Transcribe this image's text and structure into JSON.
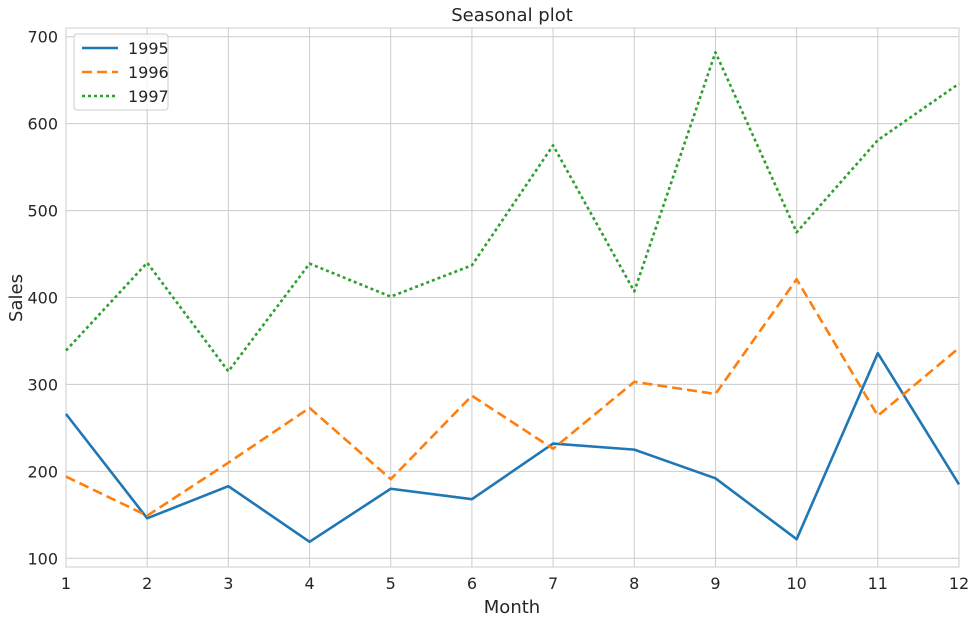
{
  "chart_data": {
    "type": "line",
    "title": "Seasonal plot",
    "xlabel": "Month",
    "ylabel": "Sales",
    "x": [
      1,
      2,
      3,
      4,
      5,
      6,
      7,
      8,
      9,
      10,
      11,
      12
    ],
    "xlim": [
      1,
      12
    ],
    "ylim": [
      90,
      710
    ],
    "yticks": [
      100,
      200,
      300,
      400,
      500,
      600,
      700
    ],
    "xticks": [
      1,
      2,
      3,
      4,
      5,
      6,
      7,
      8,
      9,
      10,
      11,
      12
    ],
    "grid": true,
    "legend_position": "top-left",
    "series": [
      {
        "name": "1995",
        "color": "#1f77b4",
        "style": "solid",
        "values": [
          266,
          146,
          183,
          119,
          180,
          168,
          232,
          225,
          192,
          122,
          336,
          185
        ]
      },
      {
        "name": "1996",
        "color": "#ff7f0e",
        "style": "dashed",
        "values": [
          194,
          149,
          210,
          273,
          191,
          287,
          226,
          303,
          289,
          421,
          264,
          342
        ]
      },
      {
        "name": "1997",
        "color": "#2ca02c",
        "style": "dotted",
        "values": [
          339,
          440,
          315,
          439,
          401,
          437,
          575,
          407,
          682,
          475,
          581,
          646
        ]
      }
    ]
  }
}
